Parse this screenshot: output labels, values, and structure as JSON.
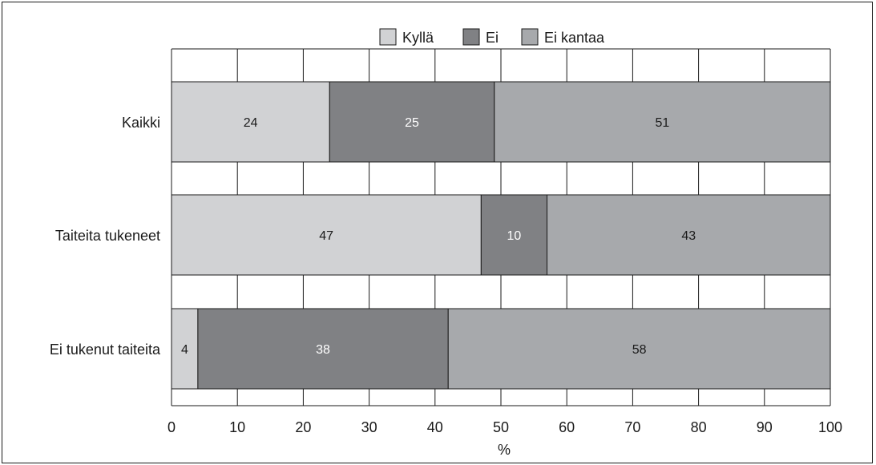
{
  "chart_data": {
    "type": "bar",
    "orientation": "horizontal",
    "stacked": true,
    "categories": [
      "Kaikki",
      "Taiteita tukeneet",
      "Ei tukenut taiteita"
    ],
    "series": [
      {
        "name": "Kyllä",
        "values": [
          24,
          47,
          4
        ],
        "color": "#d1d2d4",
        "label_color": "#1a1a1a"
      },
      {
        "name": "Ei",
        "values": [
          25,
          10,
          38
        ],
        "color": "#808184",
        "label_color": "#ffffff"
      },
      {
        "name": "Ei kantaa",
        "values": [
          51,
          43,
          58
        ],
        "color": "#a7a9ac",
        "label_color": "#1a1a1a"
      }
    ],
    "xlabel": "%",
    "xlim": [
      0,
      100
    ],
    "xticks": [
      0,
      10,
      20,
      30,
      40,
      50,
      60,
      70,
      80,
      90,
      100
    ],
    "grid": true,
    "legend_position": "top-center"
  }
}
